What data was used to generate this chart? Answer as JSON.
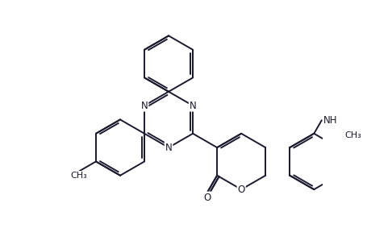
{
  "bg_color": "#ffffff",
  "line_color": "#1a1a2e",
  "bond_lw": 1.4,
  "font_size": 8.5,
  "fig_width": 4.55,
  "fig_height": 2.83,
  "dpi": 100,
  "xlim": [
    -4.5,
    5.5
  ],
  "ylim": [
    -3.8,
    4.2
  ]
}
